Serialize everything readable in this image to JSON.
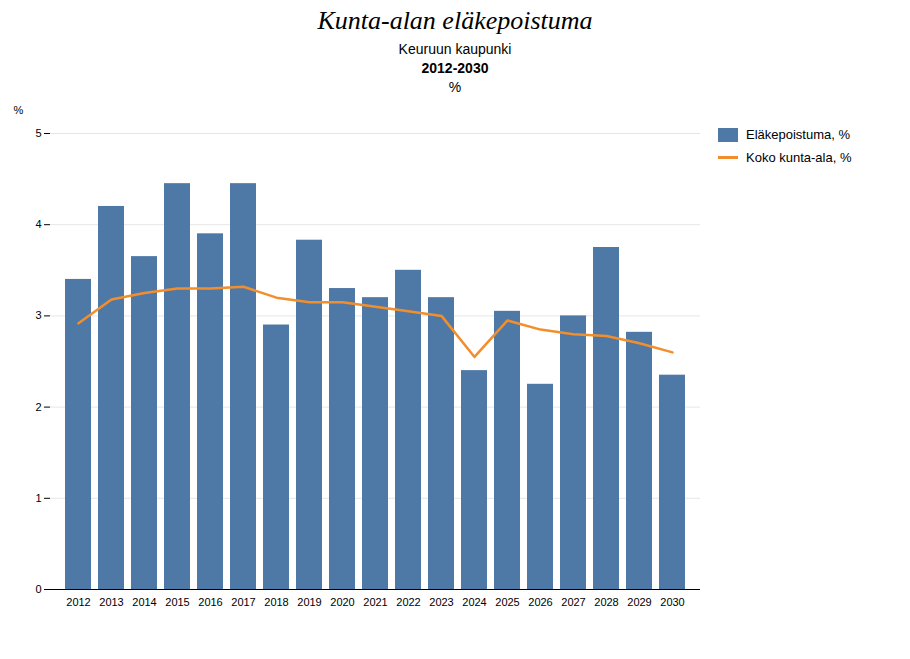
{
  "chart_data": {
    "type": "bar",
    "title": "Kunta-alan eläkepoistuma",
    "subtitle": [
      "Keuruun kaupunki",
      "2012-2030",
      "%"
    ],
    "ylabel": "%",
    "categories": [
      "2012",
      "2013",
      "2014",
      "2015",
      "2016",
      "2017",
      "2018",
      "2019",
      "2020",
      "2021",
      "2022",
      "2023",
      "2024",
      "2025",
      "2026",
      "2027",
      "2028",
      "2029",
      "2030"
    ],
    "series": [
      {
        "name": "Eläkepoistuma, %",
        "type": "bar",
        "values": [
          3.4,
          4.2,
          3.65,
          4.45,
          3.9,
          4.45,
          2.9,
          3.83,
          3.3,
          3.2,
          3.5,
          3.2,
          2.4,
          3.05,
          2.25,
          3.0,
          3.75,
          2.82,
          2.35
        ]
      },
      {
        "name": "Koko kunta-ala, %",
        "type": "line",
        "values": [
          2.92,
          3.18,
          3.25,
          3.3,
          3.3,
          3.32,
          3.2,
          3.15,
          3.15,
          3.1,
          3.05,
          3.0,
          2.55,
          2.95,
          2.85,
          2.8,
          2.78,
          2.7,
          2.6
        ]
      }
    ],
    "ylim": [
      0,
      5
    ],
    "yticks": [
      0,
      1,
      2,
      3,
      4,
      5
    ],
    "grid": true,
    "legend": "right"
  }
}
